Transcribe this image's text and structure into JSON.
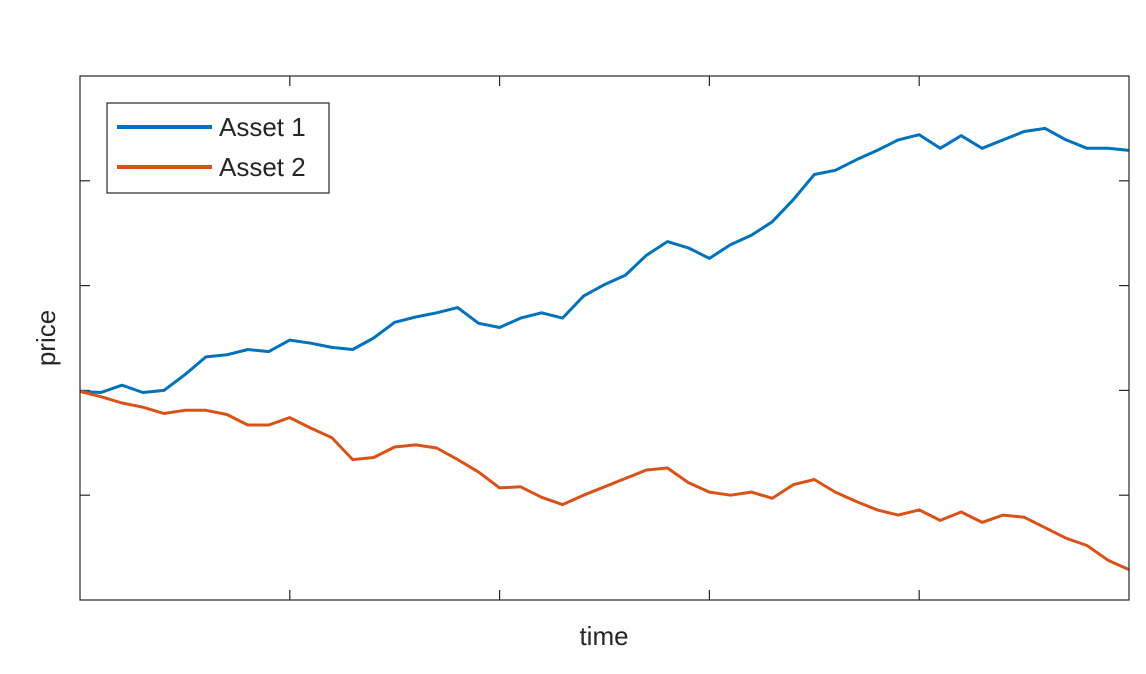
{
  "chart_data": {
    "type": "line",
    "xlabel": "time",
    "ylabel": "price",
    "x": [
      0,
      0.1,
      0.2,
      0.3,
      0.4,
      0.5,
      0.6,
      0.7,
      0.8,
      0.9,
      1,
      1.1,
      1.2,
      1.3,
      1.4,
      1.5,
      1.6,
      1.7,
      1.8,
      1.9,
      2,
      2.1,
      2.2,
      2.3,
      2.4,
      2.5,
      2.6,
      2.7,
      2.8,
      2.9,
      3,
      3.1,
      3.2,
      3.3,
      3.4,
      3.5,
      3.6,
      3.7,
      3.8,
      3.9,
      4,
      4.1,
      4.2,
      4.3,
      4.4,
      4.5,
      4.6,
      4.7,
      4.8,
      4.9,
      5
    ],
    "series": [
      {
        "name": "Asset 1",
        "color": "#0072BD",
        "values": [
          1.99,
          1.98,
          2.05,
          1.98,
          2.0,
          2.15,
          2.32,
          2.34,
          2.39,
          2.37,
          2.48,
          2.45,
          2.41,
          2.39,
          2.5,
          2.65,
          2.7,
          2.74,
          2.79,
          2.64,
          2.6,
          2.69,
          2.74,
          2.69,
          2.9,
          3.01,
          3.1,
          3.29,
          3.42,
          3.36,
          3.26,
          3.39,
          3.48,
          3.61,
          3.82,
          4.06,
          4.1,
          4.2,
          4.29,
          4.39,
          4.44,
          4.31,
          4.43,
          4.31,
          4.39,
          4.47,
          4.5,
          4.39,
          4.31,
          4.31,
          4.29
        ]
      },
      {
        "name": "Asset 2",
        "color": "#D95319",
        "values": [
          1.99,
          1.94,
          1.88,
          1.84,
          1.78,
          1.81,
          1.81,
          1.77,
          1.67,
          1.67,
          1.74,
          1.64,
          1.55,
          1.34,
          1.36,
          1.46,
          1.48,
          1.45,
          1.34,
          1.22,
          1.07,
          1.08,
          0.98,
          0.91,
          1.0,
          1.08,
          1.16,
          1.24,
          1.26,
          1.12,
          1.03,
          1.0,
          1.03,
          0.97,
          1.1,
          1.15,
          1.03,
          0.94,
          0.86,
          0.81,
          0.86,
          0.76,
          0.84,
          0.74,
          0.81,
          0.79,
          0.69,
          0.59,
          0.52,
          0.38,
          0.29
        ]
      }
    ],
    "xlim": [
      0,
      5
    ],
    "xticks": [
      1,
      2,
      3,
      4
    ],
    "ylim": [
      0,
      5
    ],
    "yticks": [
      1,
      2,
      3,
      4
    ],
    "grid": false,
    "legend": "upper left"
  }
}
